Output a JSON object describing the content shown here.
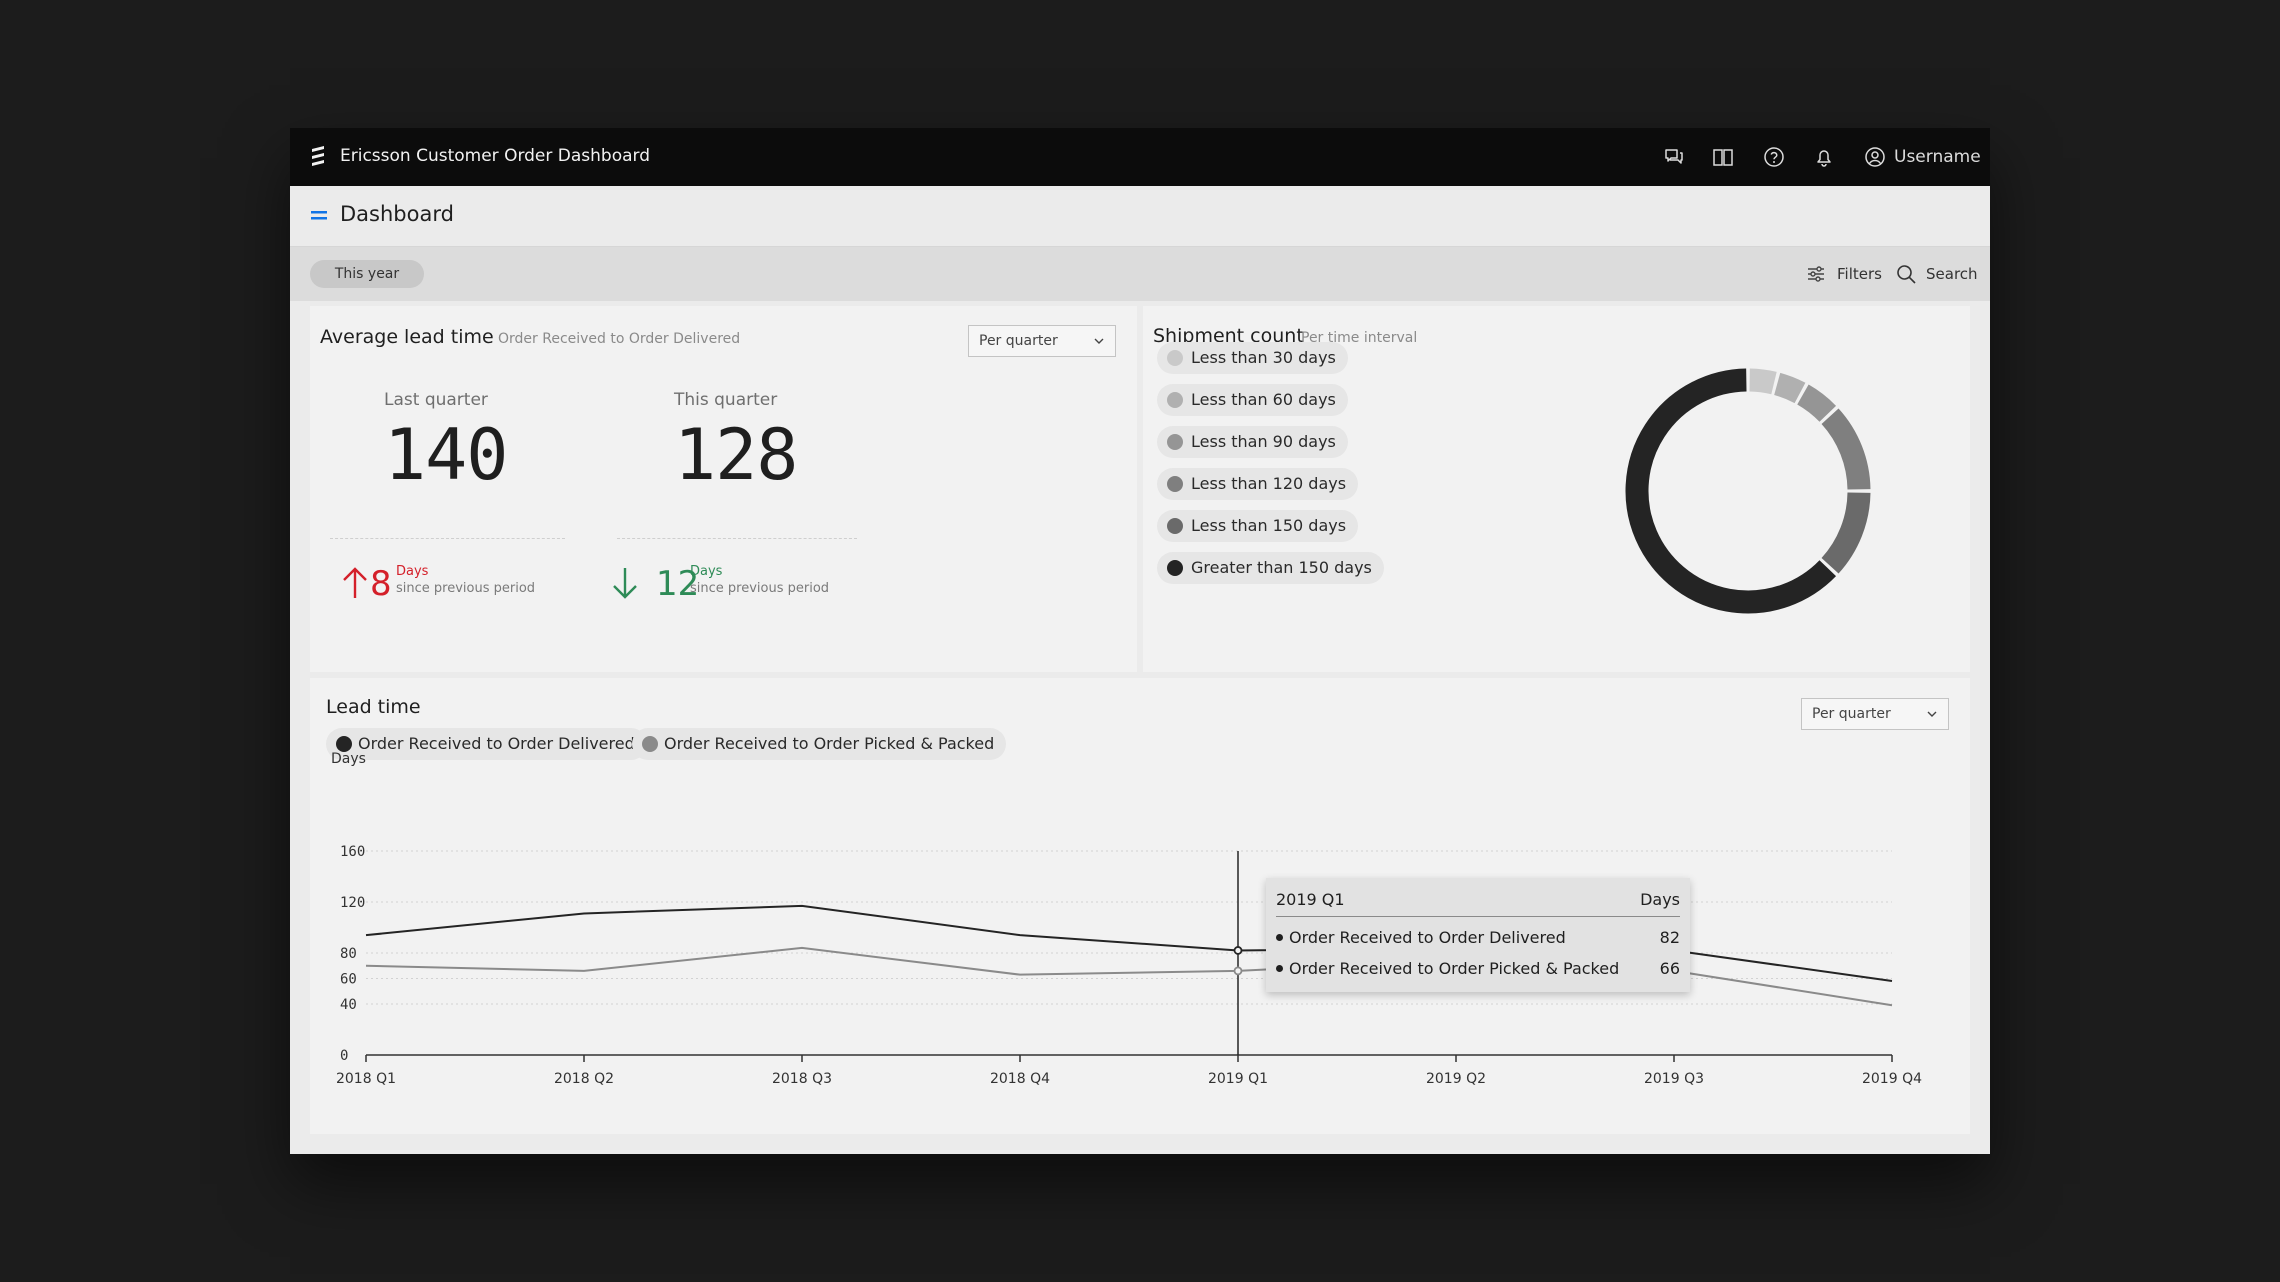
{
  "app": {
    "title": "Ericsson Customer Order Dashboard",
    "username": "Username",
    "icons": [
      "chat-icon",
      "book-icon",
      "help-icon",
      "bell-icon",
      "user-icon"
    ]
  },
  "page": {
    "title": "Dashboard"
  },
  "filterbar": {
    "period_pill": "This year",
    "filters_label": "Filters",
    "search_label": "Search"
  },
  "avg_lead_time": {
    "title": "Average lead time",
    "subtitle": "Order Received to Order Delivered",
    "select_value": "Per quarter",
    "last_quarter": {
      "label": "Last quarter",
      "value": "140",
      "delta": "8",
      "delta_unit": "Days",
      "delta_caption": "since previous period",
      "direction": "up",
      "color": "#d4202a"
    },
    "this_quarter": {
      "label": "This quarter",
      "value": "128",
      "delta": "12",
      "delta_unit": "Days",
      "delta_caption": "since previous period",
      "direction": "down",
      "color": "#2e8b57"
    }
  },
  "shipment_count": {
    "title": "Shipment count",
    "subtitle": "Per time interval",
    "legend": [
      {
        "label": "Less than 30 days",
        "color": "#c9c9c9"
      },
      {
        "label": "Less than 60 days",
        "color": "#b0b0b0"
      },
      {
        "label": "Less than 90 days",
        "color": "#959595"
      },
      {
        "label": "Less than 120 days",
        "color": "#7f7f7f"
      },
      {
        "label": "Less than 150 days",
        "color": "#6a6a6a"
      },
      {
        "label": "Greater than 150 days",
        "color": "#242424"
      }
    ]
  },
  "lead_time": {
    "title": "Lead time",
    "select_value": "Per quarter",
    "legend": [
      {
        "label": "Order Received to Order Delivered",
        "color": "#242424"
      },
      {
        "label": "Order Received to Order Picked & Packed",
        "color": "#8a8a8a"
      }
    ],
    "tooltip": {
      "period": "2019 Q1",
      "unit": "Days",
      "rows": [
        {
          "label": "Order Received to Order Delivered",
          "value": "82"
        },
        {
          "label": "Order Received to Order Picked & Packed",
          "value": "66"
        }
      ]
    }
  },
  "chart_data": [
    {
      "type": "pie",
      "title": "Shipment count",
      "labels": [
        "Less than 30 days",
        "Less than 60 days",
        "Less than 90 days",
        "Less than 120 days",
        "Less than 150 days",
        "Greater than 150 days"
      ],
      "values": [
        4,
        4,
        5,
        12,
        12,
        63
      ],
      "colors": [
        "#c9c9c9",
        "#b0b0b0",
        "#959595",
        "#7f7f7f",
        "#6a6a6a",
        "#242424"
      ],
      "donut": true
    },
    {
      "type": "line",
      "title": "Lead time",
      "ylabel": "Days",
      "categories": [
        "2018 Q1",
        "2018 Q2",
        "2018 Q3",
        "2018 Q4",
        "2019 Q1",
        "2019 Q2",
        "2019 Q3",
        "2019 Q4"
      ],
      "yticks": [
        0,
        40,
        60,
        80,
        120,
        160
      ],
      "ylim": [
        0,
        160
      ],
      "series": [
        {
          "name": "Order Received to Order Delivered",
          "color": "#242424",
          "values": [
            94,
            111,
            117,
            94,
            82,
            84,
            82,
            58
          ]
        },
        {
          "name": "Order Received to Order Picked & Packed",
          "color": "#8a8a8a",
          "values": [
            70,
            66,
            84,
            63,
            66,
            74,
            66,
            39
          ]
        }
      ],
      "highlight_category": "2019 Q1",
      "grid": true,
      "legend": "top-left"
    }
  ]
}
